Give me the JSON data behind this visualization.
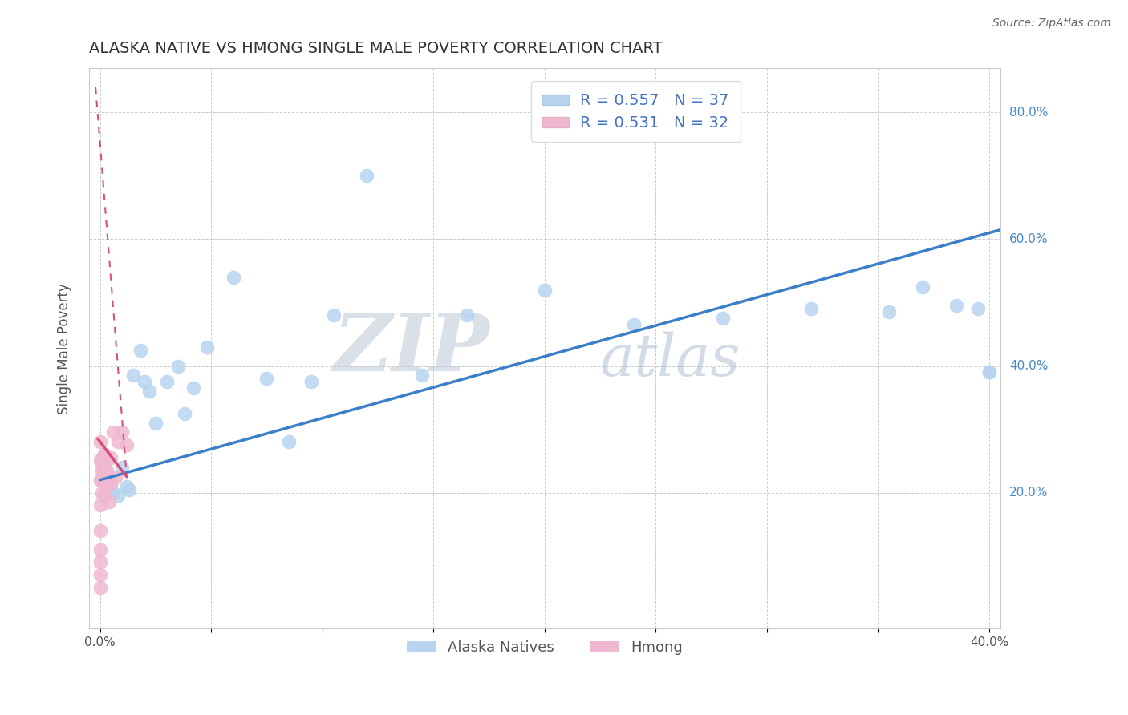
{
  "title": "ALASKA NATIVE VS HMONG SINGLE MALE POVERTY CORRELATION CHART",
  "source": "Source: ZipAtlas.com",
  "ylabel": "Single Male Poverty",
  "xlim": [
    -0.005,
    0.405
  ],
  "ylim": [
    -0.015,
    0.87
  ],
  "xticks": [
    0.0,
    0.05,
    0.1,
    0.15,
    0.2,
    0.25,
    0.3,
    0.35,
    0.4
  ],
  "yticks": [
    0.0,
    0.2,
    0.4,
    0.6,
    0.8
  ],
  "alaska_R": 0.557,
  "alaska_N": 37,
  "hmong_R": 0.531,
  "hmong_N": 32,
  "alaska_dot_color": "#b8d4f0",
  "hmong_dot_color": "#f0b8d0",
  "alaska_line_color": "#3a7fc8",
  "hmong_line_color": "#d8507a",
  "legend_text_color": "#4472c4",
  "alaska_scatter_x": [
    0.002,
    0.003,
    0.004,
    0.005,
    0.006,
    0.008,
    0.01,
    0.012,
    0.013,
    0.015,
    0.018,
    0.02,
    0.022,
    0.025,
    0.03,
    0.035,
    0.038,
    0.042,
    0.048,
    0.06,
    0.075,
    0.085,
    0.095,
    0.105,
    0.12,
    0.145,
    0.165,
    0.2,
    0.24,
    0.28,
    0.32,
    0.355,
    0.37,
    0.385,
    0.395,
    0.4,
    0.4
  ],
  "alaska_scatter_y": [
    0.245,
    0.205,
    0.2,
    0.215,
    0.2,
    0.195,
    0.24,
    0.21,
    0.205,
    0.385,
    0.425,
    0.375,
    0.36,
    0.31,
    0.375,
    0.4,
    0.325,
    0.365,
    0.43,
    0.54,
    0.38,
    0.28,
    0.375,
    0.48,
    0.7,
    0.385,
    0.48,
    0.52,
    0.465,
    0.475,
    0.49,
    0.485,
    0.525,
    0.495,
    0.49,
    0.39,
    0.39
  ],
  "hmong_scatter_x": [
    0.0,
    0.0,
    0.0,
    0.0,
    0.0,
    0.0,
    0.0,
    0.0,
    0.0,
    0.001,
    0.001,
    0.001,
    0.001,
    0.001,
    0.002,
    0.002,
    0.002,
    0.002,
    0.002,
    0.003,
    0.003,
    0.003,
    0.003,
    0.004,
    0.004,
    0.005,
    0.005,
    0.006,
    0.007,
    0.008,
    0.01,
    0.012
  ],
  "hmong_scatter_y": [
    0.05,
    0.07,
    0.09,
    0.11,
    0.14,
    0.18,
    0.22,
    0.25,
    0.28,
    0.2,
    0.22,
    0.235,
    0.245,
    0.255,
    0.195,
    0.215,
    0.225,
    0.235,
    0.26,
    0.215,
    0.225,
    0.235,
    0.255,
    0.185,
    0.225,
    0.215,
    0.255,
    0.295,
    0.225,
    0.28,
    0.295,
    0.275
  ],
  "alaska_trend_x0": 0.0,
  "alaska_trend_y0": 0.22,
  "alaska_trend_x1": 0.405,
  "alaska_trend_y1": 0.615,
  "hmong_trend_solid_x0": -0.001,
  "hmong_trend_solid_y0": 0.285,
  "hmong_trend_solid_x1": 0.012,
  "hmong_trend_solid_y1": 0.225,
  "hmong_trend_dashed_x0": -0.002,
  "hmong_trend_dashed_y0": 0.84,
  "hmong_trend_dashed_x1": 0.012,
  "hmong_trend_dashed_y1": 0.225,
  "background_color": "#ffffff",
  "grid_color": "#c8c8c8",
  "bottom_labels": [
    "Alaska Natives",
    "Hmong"
  ]
}
